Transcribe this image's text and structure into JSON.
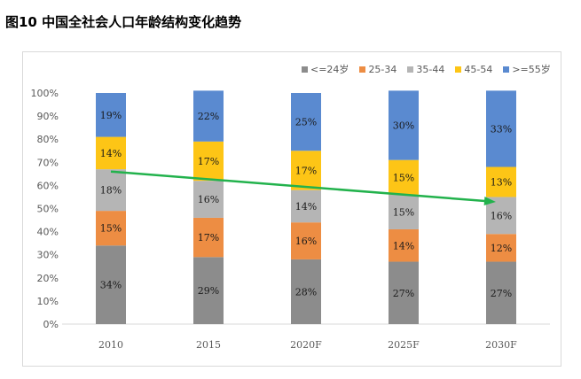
{
  "title": "图10 中国全社会人口年龄结构变化趋势",
  "chart_data": {
    "type": "bar",
    "stacked": true,
    "percent_stacked": true,
    "categories": [
      "2010",
      "2015",
      "2020F",
      "2025F",
      "2030F"
    ],
    "series": [
      {
        "name": "<=24岁",
        "color": "#8c8c8c",
        "values": [
          34,
          29,
          28,
          27,
          27
        ]
      },
      {
        "name": "25-34",
        "color": "#ed8d43",
        "values": [
          15,
          17,
          16,
          14,
          12
        ]
      },
      {
        "name": "35-44",
        "color": "#b5b5b5",
        "values": [
          18,
          16,
          14,
          15,
          16
        ]
      },
      {
        "name": "45-54",
        "color": "#fdc516",
        "values": [
          14,
          17,
          17,
          15,
          13
        ]
      },
      {
        "name": ">=55岁",
        "color": "#5a8ad0",
        "values": [
          19,
          22,
          25,
          30,
          33
        ]
      }
    ],
    "data_labels": [
      [
        "34%",
        "29%",
        "28%",
        "27%",
        "27%"
      ],
      [
        "15%",
        "17%",
        "16%",
        "14%",
        "12%"
      ],
      [
        "18%",
        "16%",
        "14%",
        "15%",
        "16%"
      ],
      [
        "14%",
        "17%",
        "17%",
        "15%",
        "13%"
      ],
      [
        "19%",
        "22%",
        "25%",
        "30%",
        "33%"
      ]
    ],
    "yticks": [
      "0%",
      "10%",
      "20%",
      "30%",
      "40%",
      "50%",
      "60%",
      "70%",
      "80%",
      "90%",
      "100%"
    ],
    "ylim": [
      0,
      100
    ],
    "legend_position": "top-right",
    "trend_arrow": {
      "color": "#22b24c",
      "from": {
        "x": "2010",
        "y": 66
      },
      "to": {
        "x": "2030F",
        "y": 53
      }
    }
  }
}
